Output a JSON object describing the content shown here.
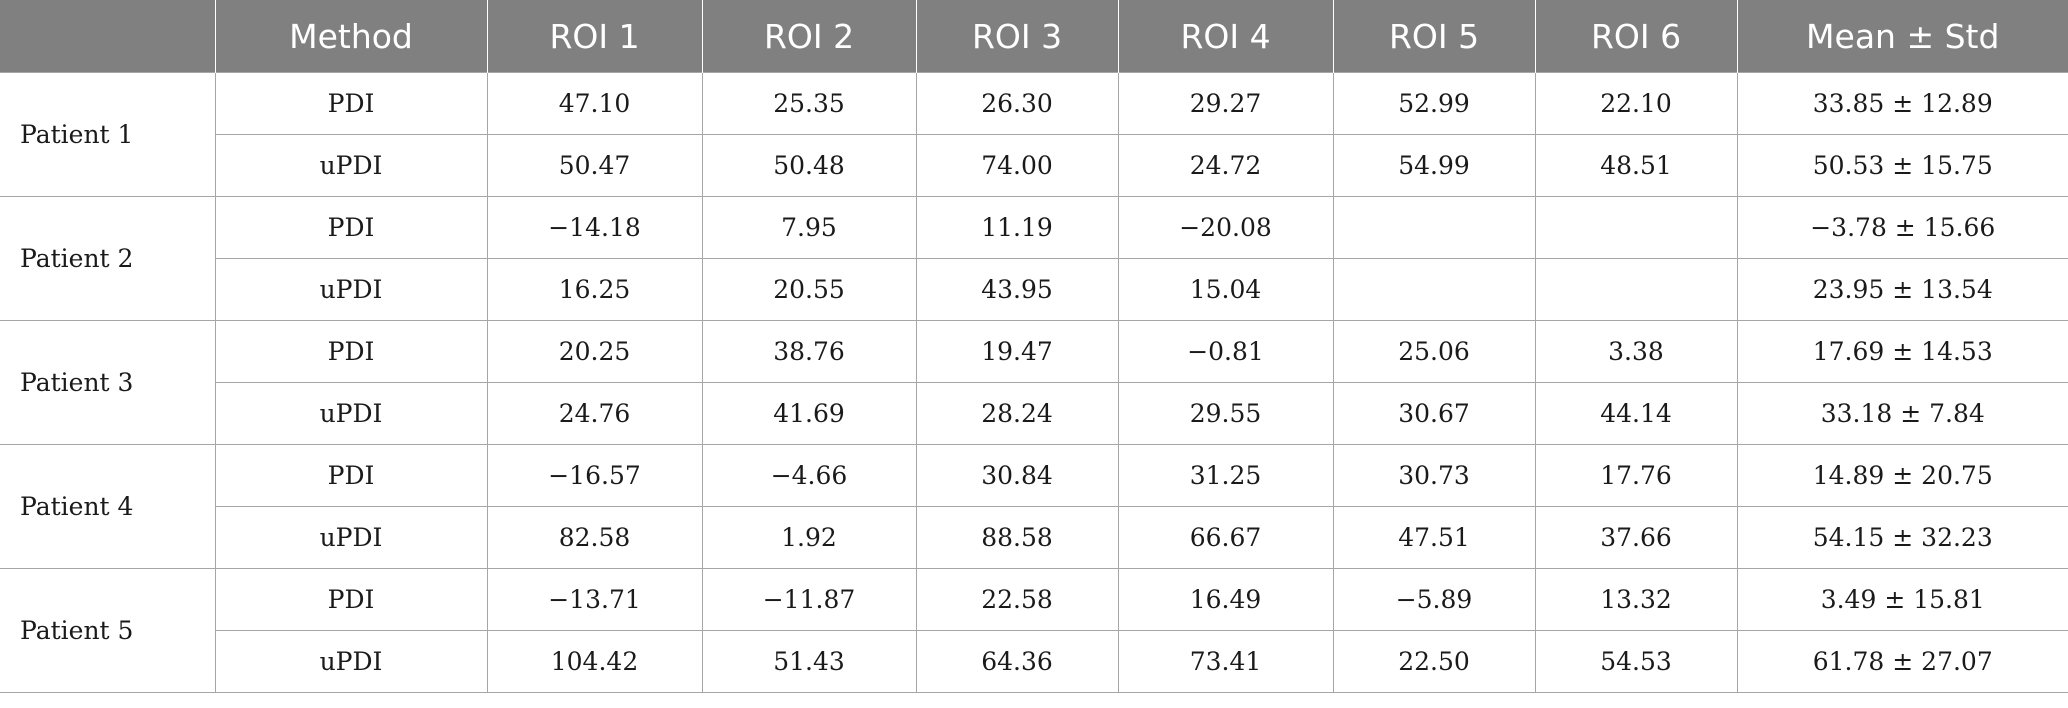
{
  "header": {
    "corner": "",
    "method": "Method",
    "roi1": "ROI 1",
    "roi2": "ROI 2",
    "roi3": "ROI 3",
    "roi4": "ROI 4",
    "roi5": "ROI 5",
    "roi6": "ROI 6",
    "mean_std": "Mean ± Std"
  },
  "patients": [
    {
      "name": "Patient 1",
      "rows": [
        {
          "method": "PDI",
          "values": [
            "47.10",
            "25.35",
            "26.30",
            "29.27",
            "52.99",
            "22.10"
          ],
          "mean_std": "33.85 ± 12.89"
        },
        {
          "method": "uPDI",
          "values": [
            "50.47",
            "50.48",
            "74.00",
            "24.72",
            "54.99",
            "48.51"
          ],
          "mean_std": "50.53 ± 15.75"
        }
      ]
    },
    {
      "name": "Patient 2",
      "rows": [
        {
          "method": "PDI",
          "values": [
            "−14.18",
            "7.95",
            "11.19",
            "−20.08",
            "",
            ""
          ],
          "mean_std": "−3.78 ± 15.66"
        },
        {
          "method": "uPDI",
          "values": [
            "16.25",
            "20.55",
            "43.95",
            "15.04",
            "",
            ""
          ],
          "mean_std": "23.95 ± 13.54"
        }
      ]
    },
    {
      "name": "Patient 3",
      "rows": [
        {
          "method": "PDI",
          "values": [
            "20.25",
            "38.76",
            "19.47",
            "−0.81",
            "25.06",
            "3.38"
          ],
          "mean_std": "17.69 ± 14.53"
        },
        {
          "method": "uPDI",
          "values": [
            "24.76",
            "41.69",
            "28.24",
            "29.55",
            "30.67",
            "44.14"
          ],
          "mean_std": "33.18 ± 7.84"
        }
      ]
    },
    {
      "name": "Patient 4",
      "rows": [
        {
          "method": "PDI",
          "values": [
            "−16.57",
            "−4.66",
            "30.84",
            "31.25",
            "30.73",
            "17.76"
          ],
          "mean_std": "14.89 ± 20.75"
        },
        {
          "method": "uPDI",
          "values": [
            "82.58",
            "1.92",
            "88.58",
            "66.67",
            "47.51",
            "37.66"
          ],
          "mean_std": "54.15 ± 32.23"
        }
      ]
    },
    {
      "name": "Patient 5",
      "rows": [
        {
          "method": "PDI",
          "values": [
            "−13.71",
            "−11.87",
            "22.58",
            "16.49",
            "−5.89",
            "13.32"
          ],
          "mean_std": "3.49 ± 15.81"
        },
        {
          "method": "uPDI",
          "values": [
            "104.42",
            "51.43",
            "64.36",
            "73.41",
            "22.50",
            "54.53"
          ],
          "mean_std": "61.78 ± 27.07"
        }
      ]
    }
  ]
}
